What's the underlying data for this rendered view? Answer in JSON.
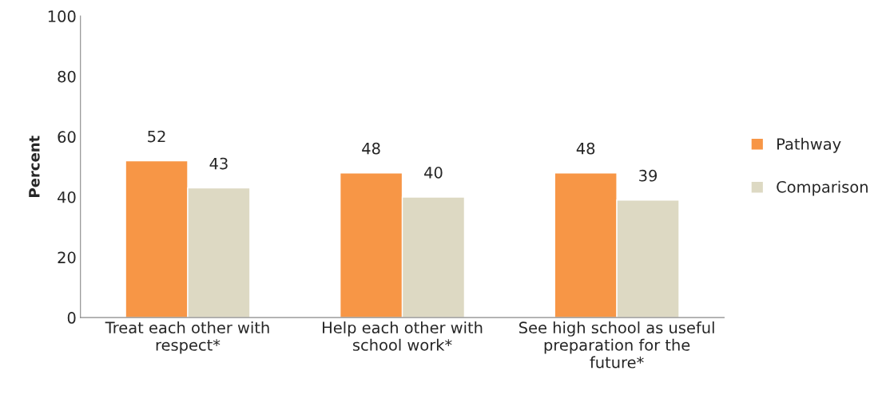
{
  "chart_data": {
    "type": "bar",
    "ylabel": "Percent",
    "categories": [
      "Treat each other with\nrespect*",
      "Help each other with\nschool work*",
      "See high school as useful\npreparation for the\nfuture*"
    ],
    "series": [
      {
        "name": "Pathway",
        "color": "#f79646",
        "values": [
          52,
          48,
          48
        ]
      },
      {
        "name": "Comparison",
        "color": "#ddd9c3",
        "values": [
          43,
          40,
          39
        ]
      }
    ],
    "ylim": [
      0,
      100
    ],
    "yticks": [
      0,
      20,
      40,
      60,
      80,
      100
    ],
    "data_labels": true,
    "legend": "right",
    "grid": false
  }
}
